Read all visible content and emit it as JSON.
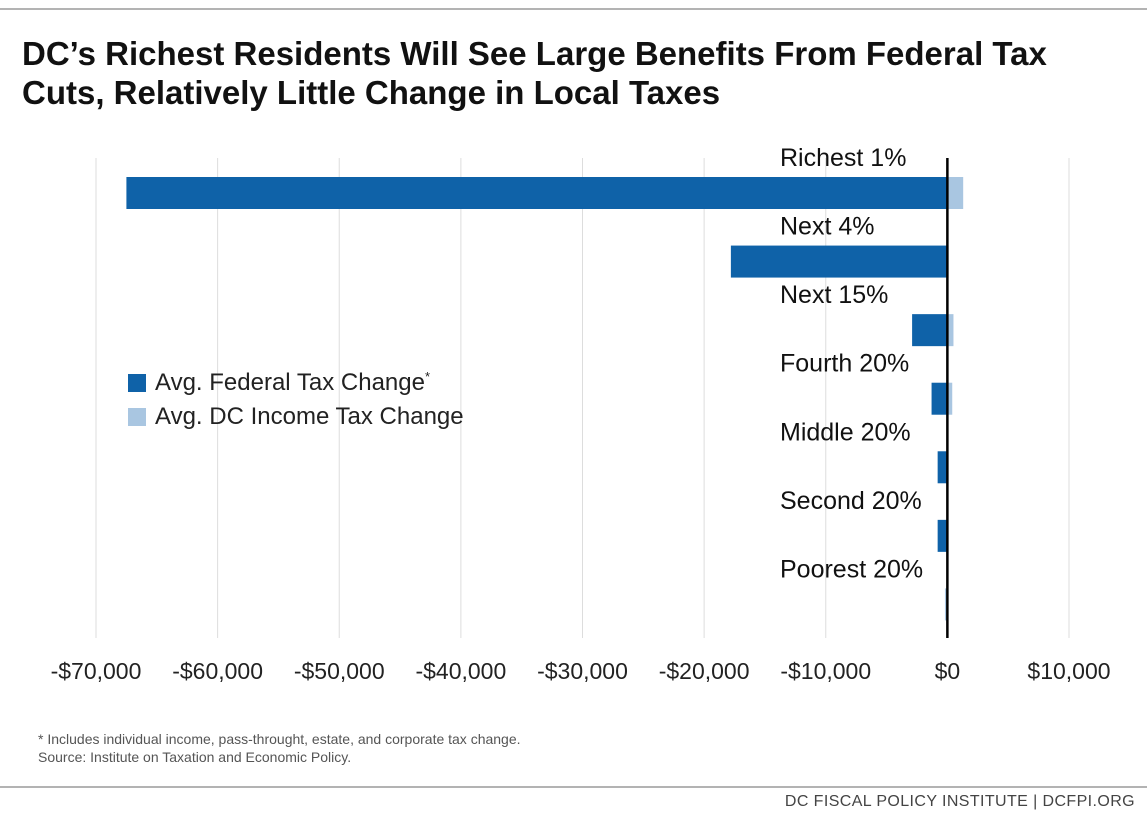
{
  "title": "DC’s Richest Residents Will See Large Benefits From Federal Tax Cuts, Relatively Little Change in Local Taxes",
  "legend": {
    "federal": "Avg. Federal Tax Change",
    "federal_marker": "*",
    "dc": "Avg. DC Income Tax Change"
  },
  "footnote": {
    "line1": "* Includes individual income, pass-throught, estate, and corporate tax change.",
    "line2": "Source: Institute on Taxation and Economic Policy."
  },
  "brand": "DC FISCAL POLICY INSTITUTE | DCFPI.ORG",
  "colors": {
    "federal": "#0f62a8",
    "dc": "#a9c6e1",
    "zero_line": "#000000",
    "grid": "#dddddd"
  },
  "chart_data": {
    "type": "bar",
    "orientation": "horizontal",
    "categories": [
      "Richest 1%",
      "Next 4%",
      "Next 15%",
      "Fourth 20%",
      "Middle 20%",
      "Second 20%",
      "Poorest 20%"
    ],
    "series": [
      {
        "name": "Avg. Federal Tax Change",
        "values": [
          -67500,
          -17800,
          -2900,
          -1300,
          -800,
          -800,
          0
        ]
      },
      {
        "name": "Avg. DC Income Tax Change",
        "values": [
          1300,
          100,
          500,
          400,
          0,
          0,
          -200
        ]
      }
    ],
    "xlim": [
      -70000,
      10000
    ],
    "xticks": [
      -70000,
      -60000,
      -50000,
      -40000,
      -30000,
      -20000,
      -10000,
      0,
      10000
    ],
    "xtick_labels": [
      "-$70,000",
      "-$60,000",
      "-$50,000",
      "-$40,000",
      "-$30,000",
      "-$20,000",
      "-$10,000",
      "$0",
      "$10,000"
    ],
    "title": "",
    "xlabel": "",
    "ylabel": "",
    "grid": "vertical",
    "legend_position": "left"
  }
}
